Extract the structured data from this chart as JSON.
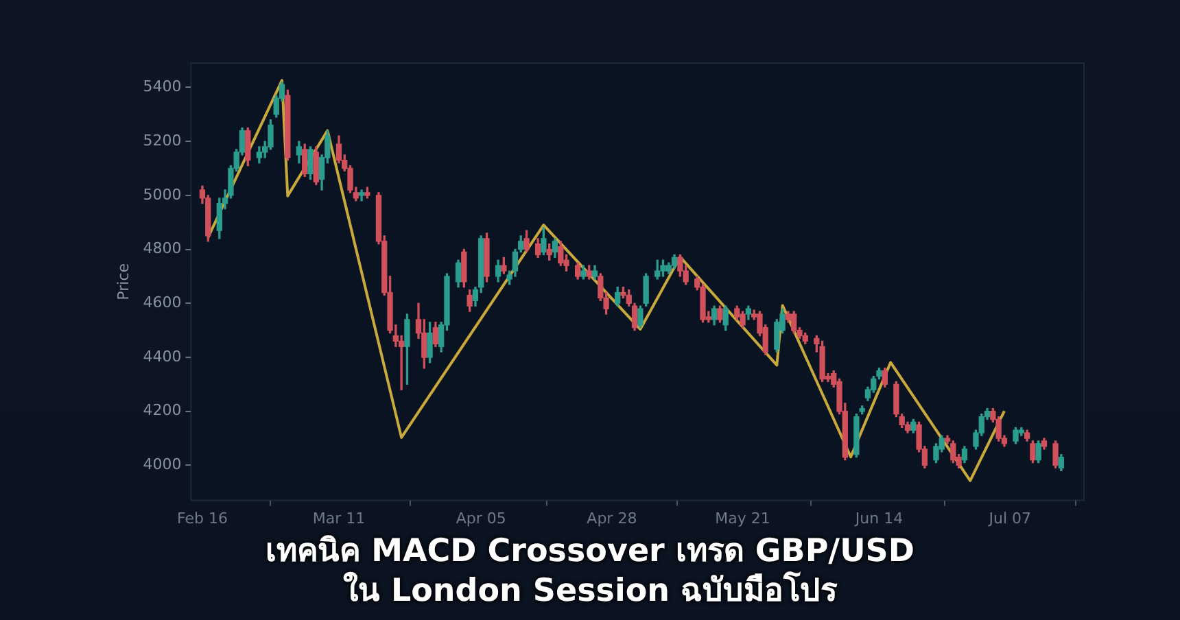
{
  "chart_data": {
    "type": "candlestick",
    "title": "เทคนิค MACD Crossover เทรด GBP/USD\nใน London Session ฉบับมือโปร",
    "ylabel": "Price",
    "x": [
      "--02-16",
      "--02-17",
      "--02-19",
      "--02-20",
      "--02-21",
      "--02-22",
      "--02-23",
      "--02-24",
      "--02-26",
      "--02-27",
      "--02-28",
      "--02-29",
      "--03-01",
      "--03-02",
      "--03-04",
      "--03-05",
      "--03-06",
      "--03-07",
      "--03-08",
      "--03-09",
      "--03-11",
      "--03-12",
      "--03-13",
      "--03-14",
      "--03-15",
      "--03-16",
      "--03-18",
      "--03-19",
      "--03-20",
      "--03-21",
      "--03-22",
      "--03-23",
      "--03-25",
      "--03-26",
      "--03-27",
      "--03-28",
      "--03-29",
      "--03-30",
      "--04-01",
      "--04-02",
      "--04-03",
      "--04-04",
      "--04-05",
      "--04-06",
      "--04-08",
      "--04-09",
      "--04-10",
      "--04-11",
      "--04-12",
      "--04-13",
      "--04-15",
      "--04-16",
      "--04-17",
      "--04-18",
      "--04-19",
      "--04-20",
      "--04-22",
      "--04-23",
      "--04-24",
      "--04-25",
      "--04-26",
      "--04-27",
      "--04-29",
      "--04-30",
      "--05-01",
      "--05-02",
      "--05-03",
      "--05-04",
      "--05-06",
      "--05-07",
      "--05-08",
      "--05-09",
      "--05-10",
      "--05-11",
      "--05-13",
      "--05-14",
      "--05-15",
      "--05-16",
      "--05-17",
      "--05-18",
      "--05-20",
      "--05-21",
      "--05-22",
      "--05-23",
      "--05-24",
      "--05-25",
      "--05-27",
      "--05-28",
      "--05-29",
      "--05-30",
      "--05-31",
      "--06-01",
      "--06-03",
      "--06-04",
      "--06-05",
      "--06-06",
      "--06-07",
      "--06-08",
      "--06-10",
      "--06-11",
      "--06-12",
      "--06-13",
      "--06-14",
      "--06-15",
      "--06-17",
      "--06-18",
      "--06-19",
      "--06-20",
      "--06-21",
      "--06-22",
      "--06-24",
      "--06-25",
      "--06-26",
      "--06-27",
      "--06-28",
      "--06-29",
      "--07-01",
      "--07-02",
      "--07-03",
      "--07-04",
      "--07-05",
      "--07-06",
      "--07-08",
      "--07-09",
      "--07-10",
      "--07-11",
      "--07-12",
      "--07-13",
      "--07-15",
      "--07-16"
    ],
    "ohlc": [
      [
        5020,
        5035,
        4970,
        4990
      ],
      [
        4990,
        5000,
        4830,
        4850
      ],
      [
        4870,
        4990,
        4840,
        4970
      ],
      [
        4970,
        5020,
        4950,
        4990
      ],
      [
        5000,
        5110,
        4990,
        5100
      ],
      [
        5100,
        5170,
        5090,
        5160
      ],
      [
        5160,
        5250,
        5150,
        5240
      ],
      [
        5240,
        5250,
        5110,
        5130
      ],
      [
        5140,
        5180,
        5120,
        5160
      ],
      [
        5160,
        5200,
        5140,
        5180
      ],
      [
        5180,
        5280,
        5170,
        5260
      ],
      [
        5300,
        5370,
        5290,
        5360
      ],
      [
        5360,
        5420,
        5350,
        5410
      ],
      [
        5370,
        5390,
        5130,
        5140
      ],
      [
        5150,
        5200,
        5120,
        5180
      ],
      [
        5170,
        5190,
        5070,
        5080
      ],
      [
        5080,
        5180,
        5060,
        5170
      ],
      [
        5160,
        5180,
        5040,
        5050
      ],
      [
        5060,
        5150,
        5020,
        5140
      ],
      [
        5140,
        5240,
        5120,
        5220
      ],
      [
        5190,
        5220,
        5120,
        5130
      ],
      [
        5130,
        5150,
        5090,
        5100
      ],
      [
        5100,
        5110,
        5010,
        5020
      ],
      [
        5010,
        5030,
        4980,
        4990
      ],
      [
        5000,
        5020,
        4980,
        5010
      ],
      [
        5010,
        5030,
        4990,
        5000
      ],
      [
        5000,
        5010,
        4820,
        4830
      ],
      [
        4830,
        4850,
        4630,
        4640
      ],
      [
        4640,
        4700,
        4490,
        4500
      ],
      [
        4480,
        4520,
        4440,
        4460
      ],
      [
        4460,
        4480,
        4280,
        4440
      ],
      [
        4440,
        4560,
        4300,
        4540
      ],
      [
        4540,
        4600,
        4470,
        4490
      ],
      [
        4490,
        4540,
        4360,
        4400
      ],
      [
        4400,
        4530,
        4380,
        4490
      ],
      [
        4510,
        4530,
        4440,
        4450
      ],
      [
        4440,
        4530,
        4420,
        4520
      ],
      [
        4520,
        4710,
        4500,
        4700
      ],
      [
        4680,
        4760,
        4660,
        4750
      ],
      [
        4790,
        4800,
        4660,
        4680
      ],
      [
        4630,
        4650,
        4570,
        4590
      ],
      [
        4610,
        4660,
        4590,
        4650
      ],
      [
        4660,
        4850,
        4640,
        4840
      ],
      [
        4840,
        4860,
        4680,
        4700
      ],
      [
        4700,
        4760,
        4680,
        4740
      ],
      [
        4740,
        4770,
        4710,
        4720
      ],
      [
        4690,
        4720,
        4670,
        4705
      ],
      [
        4720,
        4800,
        4700,
        4790
      ],
      [
        4800,
        4850,
        4790,
        4830
      ],
      [
        4840,
        4870,
        4790,
        4800
      ],
      [
        4820,
        4840,
        4770,
        4780
      ],
      [
        4790,
        4880,
        4780,
        4840
      ],
      [
        4800,
        4820,
        4760,
        4780
      ],
      [
        4790,
        4840,
        4770,
        4830
      ],
      [
        4810,
        4830,
        4740,
        4750
      ],
      [
        4760,
        4780,
        4720,
        4740
      ],
      [
        4740,
        4750,
        4690,
        4700
      ],
      [
        4700,
        4740,
        4690,
        4720
      ],
      [
        4720,
        4740,
        4690,
        4700
      ],
      [
        4700,
        4740,
        4690,
        4720
      ],
      [
        4700,
        4710,
        4610,
        4620
      ],
      [
        4620,
        4640,
        4560,
        4580
      ],
      [
        4600,
        4660,
        4590,
        4640
      ],
      [
        4640,
        4660,
        4620,
        4630
      ],
      [
        4630,
        4650,
        4590,
        4600
      ],
      [
        4590,
        4600,
        4500,
        4510
      ],
      [
        4520,
        4590,
        4510,
        4580
      ],
      [
        4600,
        4710,
        4590,
        4700
      ],
      [
        4700,
        4760,
        4690,
        4720
      ],
      [
        4720,
        4760,
        4700,
        4740
      ],
      [
        4720,
        4750,
        4710,
        4740
      ],
      [
        4740,
        4780,
        4730,
        4770
      ],
      [
        4770,
        4780,
        4700,
        4720
      ],
      [
        4720,
        4740,
        4670,
        4680
      ],
      [
        4690,
        4700,
        4650,
        4660
      ],
      [
        4660,
        4670,
        4530,
        4540
      ],
      [
        4550,
        4570,
        4530,
        4540
      ],
      [
        4540,
        4590,
        4520,
        4580
      ],
      [
        4580,
        4590,
        4530,
        4540
      ],
      [
        4520,
        4590,
        4500,
        4580
      ],
      [
        4580,
        4590,
        4540,
        4550
      ],
      [
        4560,
        4570,
        4510,
        4520
      ],
      [
        4560,
        4590,
        4540,
        4580
      ],
      [
        4560,
        4575,
        4540,
        4550
      ],
      [
        4560,
        4570,
        4480,
        4490
      ],
      [
        4510,
        4520,
        4410,
        4420
      ],
      [
        4430,
        4540,
        4420,
        4530
      ],
      [
        4500,
        4580,
        4490,
        4560
      ],
      [
        4560,
        4570,
        4530,
        4540
      ],
      [
        4560,
        4570,
        4490,
        4500
      ],
      [
        4500,
        4510,
        4470,
        4480
      ],
      [
        4480,
        4490,
        4450,
        4460
      ],
      [
        4470,
        4480,
        4420,
        4450
      ],
      [
        4440,
        4460,
        4310,
        4320
      ],
      [
        4330,
        4340,
        4310,
        4320
      ],
      [
        4340,
        4350,
        4290,
        4300
      ],
      [
        4310,
        4320,
        4190,
        4200
      ],
      [
        4200,
        4230,
        4020,
        4030
      ],
      [
        4040,
        4190,
        4030,
        4180
      ],
      [
        4200,
        4220,
        4190,
        4210
      ],
      [
        4250,
        4290,
        4240,
        4280
      ],
      [
        4280,
        4330,
        4270,
        4320
      ],
      [
        4330,
        4360,
        4320,
        4350
      ],
      [
        4350,
        4360,
        4290,
        4300
      ],
      [
        4300,
        4310,
        4180,
        4190
      ],
      [
        4180,
        4190,
        4140,
        4150
      ],
      [
        4150,
        4160,
        4120,
        4130
      ],
      [
        4130,
        4170,
        4120,
        4160
      ],
      [
        4150,
        4160,
        4050,
        4060
      ],
      [
        4060,
        4070,
        3990,
        4000
      ],
      [
        4020,
        4080,
        4010,
        4070
      ],
      [
        4060,
        4110,
        4050,
        4100
      ],
      [
        4100,
        4110,
        4080,
        4090
      ],
      [
        4080,
        4090,
        4010,
        4020
      ],
      [
        4030,
        4040,
        3990,
        4000
      ],
      [
        4020,
        4070,
        4010,
        4060
      ],
      [
        4070,
        4130,
        4060,
        4120
      ],
      [
        4120,
        4190,
        4110,
        4180
      ],
      [
        4180,
        4210,
        4170,
        4200
      ],
      [
        4200,
        4210,
        4160,
        4170
      ],
      [
        4170,
        4180,
        4090,
        4100
      ],
      [
        4100,
        4110,
        4070,
        4080
      ],
      [
        4090,
        4140,
        4080,
        4130
      ],
      [
        4120,
        4140,
        4110,
        4130
      ],
      [
        4120,
        4130,
        4090,
        4100
      ],
      [
        4080,
        4090,
        4010,
        4020
      ],
      [
        4020,
        4090,
        4010,
        4080
      ],
      [
        4090,
        4100,
        4060,
        4070
      ],
      [
        4080,
        4090,
        3990,
        4000
      ],
      [
        3990,
        4040,
        3980,
        4030
      ]
    ],
    "colors": [
      "#d0505c",
      "#d0505c",
      "#2a9d8f",
      "#2a9d8f",
      "#2a9d8f",
      "#2a9d8f",
      "#2a9d8f",
      "#d0505c",
      "#2a9d8f",
      "#2a9d8f",
      "#2a9d8f",
      "#2a9d8f",
      "#2a9d8f",
      "#d0505c",
      "#2a9d8f",
      "#d0505c",
      "#2a9d8f",
      "#d0505c",
      "#2a9d8f",
      "#2a9d8f",
      "#d0505c",
      "#d0505c",
      "#d0505c",
      "#d0505c",
      "#2a9d8f",
      "#d0505c",
      "#d0505c",
      "#d0505c",
      "#d0505c",
      "#d0505c",
      "#d0505c",
      "#2a9d8f",
      "#d0505c",
      "#d0505c",
      "#2a9d8f",
      "#d0505c",
      "#2a9d8f",
      "#2a9d8f",
      "#2a9d8f",
      "#d0505c",
      "#d0505c",
      "#2a9d8f",
      "#2a9d8f",
      "#d0505c",
      "#2a9d8f",
      "#d0505c",
      "#2a9d8f",
      "#2a9d8f",
      "#2a9d8f",
      "#d0505c",
      "#d0505c",
      "#2a9d8f",
      "#d0505c",
      "#2a9d8f",
      "#d0505c",
      "#d0505c",
      "#d0505c",
      "#2a9d8f",
      "#d0505c",
      "#2a9d8f",
      "#d0505c",
      "#d0505c",
      "#2a9d8f",
      "#d0505c",
      "#d0505c",
      "#d0505c",
      "#2a9d8f",
      "#2a9d8f",
      "#2a9d8f",
      "#2a9d8f",
      "#2a9d8f",
      "#2a9d8f",
      "#d0505c",
      "#d0505c",
      "#d0505c",
      "#d0505c",
      "#d0505c",
      "#2a9d8f",
      "#d0505c",
      "#2a9d8f",
      "#d0505c",
      "#d0505c",
      "#2a9d8f",
      "#d0505c",
      "#d0505c",
      "#d0505c",
      "#2a9d8f",
      "#2a9d8f",
      "#d0505c",
      "#d0505c",
      "#d0505c",
      "#d0505c",
      "#d0505c",
      "#d0505c",
      "#d0505c",
      "#d0505c",
      "#d0505c",
      "#d0505c",
      "#2a9d8f",
      "#2a9d8f",
      "#2a9d8f",
      "#2a9d8f",
      "#2a9d8f",
      "#d0505c",
      "#d0505c",
      "#d0505c",
      "#d0505c",
      "#2a9d8f",
      "#d0505c",
      "#d0505c",
      "#2a9d8f",
      "#2a9d8f",
      "#d0505c",
      "#d0505c",
      "#d0505c",
      "#2a9d8f",
      "#2a9d8f",
      "#2a9d8f",
      "#2a9d8f",
      "#d0505c",
      "#d0505c",
      "#d0505c",
      "#2a9d8f",
      "#2a9d8f",
      "#d0505c",
      "#d0505c",
      "#2a9d8f",
      "#d0505c",
      "#d0505c",
      "#2a9d8f"
    ],
    "series": [
      {
        "type": "line",
        "color": "#c9a93b",
        "x": [
          "--02-17",
          "--03-01",
          "--03-02",
          "--03-09",
          "--03-22",
          "--04-16",
          "--05-03",
          "--05-10",
          "--05-27",
          "--05-28",
          "--06-09",
          "--06-16",
          "--06-30",
          "--07-06"
        ],
        "values": [
          4844,
          5426,
          4998,
          5240,
          4103,
          4890,
          4504,
          4772,
          4371,
          4592,
          4031,
          4381,
          3943,
          4201
        ]
      }
    ],
    "marker": "none",
    "legend": false,
    "grid": false,
    "xlim": [
      "--02-14",
      "--07-20"
    ],
    "xticks": [
      {
        "value": "--02-16",
        "label": "Feb 16"
      },
      {
        "value": "--03-11",
        "label": "Mar 11"
      },
      {
        "value": "--04-05",
        "label": "Apr 05"
      },
      {
        "value": "--04-28",
        "label": "Apr 28"
      },
      {
        "value": "--05-21",
        "label": "May 21"
      },
      {
        "value": "--06-14",
        "label": "Jun 14"
      },
      {
        "value": "--07-07",
        "label": "Jul 07"
      }
    ],
    "ylim": [
      3870,
      5490
    ],
    "yticks": [
      4000,
      4200,
      4400,
      4600,
      4800,
      5000,
      5200,
      5400
    ]
  }
}
